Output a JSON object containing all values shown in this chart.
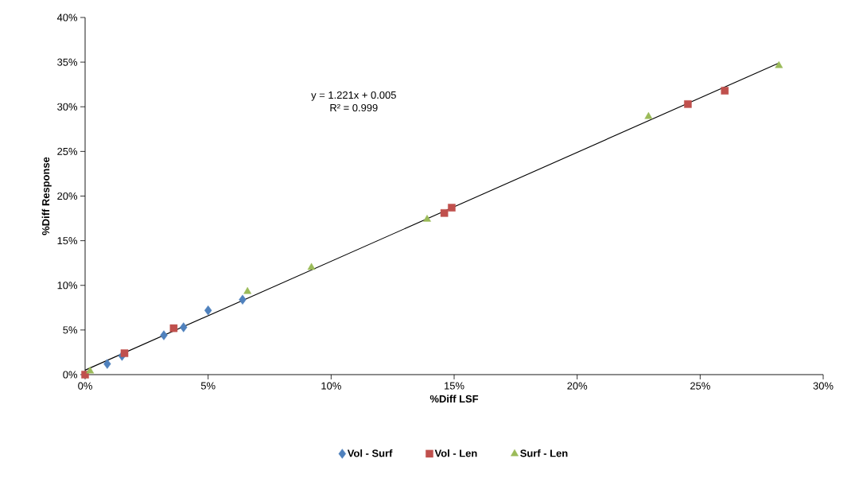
{
  "chart_data": {
    "type": "scatter",
    "xlabel": "%Diff LSF",
    "ylabel": "%Diff Response",
    "xlim": [
      0,
      30
    ],
    "ylim": [
      0,
      40
    ],
    "xticks": [
      {
        "value": 0,
        "label": "0%"
      },
      {
        "value": 5,
        "label": "5%"
      },
      {
        "value": 10,
        "label": "10%"
      },
      {
        "value": 15,
        "label": "15%"
      },
      {
        "value": 20,
        "label": "20%"
      },
      {
        "value": 25,
        "label": "25%"
      },
      {
        "value": 30,
        "label": "30%"
      }
    ],
    "yticks": [
      {
        "value": 0,
        "label": "0%"
      },
      {
        "value": 5,
        "label": "5%"
      },
      {
        "value": 10,
        "label": "10%"
      },
      {
        "value": 15,
        "label": "15%"
      },
      {
        "value": 20,
        "label": "20%"
      },
      {
        "value": 25,
        "label": "25%"
      },
      {
        "value": 30,
        "label": "30%"
      },
      {
        "value": 35,
        "label": "35%"
      },
      {
        "value": 40,
        "label": "40%"
      }
    ],
    "legend": "bottom",
    "annotations": [
      "y = 1.221x + 0.005",
      "R² = 0.999"
    ],
    "series": [
      {
        "name": "Vol - Surf",
        "color": "#4f81bd",
        "marker": "diamond",
        "x": [
          0.9,
          1.5,
          3.2,
          4.0,
          5.0,
          6.4
        ],
        "values": [
          1.2,
          2.1,
          4.4,
          5.3,
          7.2,
          8.4
        ]
      },
      {
        "name": "Vol - Len",
        "color": "#c0504d",
        "marker": "square",
        "x": [
          0,
          1.6,
          3.6,
          14.6,
          14.9,
          24.5,
          26.0
        ],
        "values": [
          0,
          2.4,
          5.2,
          18.1,
          18.7,
          30.3,
          31.8
        ]
      },
      {
        "name": "Surf - Len",
        "color": "#9bbb59",
        "marker": "triangle",
        "x": [
          0.2,
          6.6,
          9.2,
          13.9,
          22.9,
          28.2
        ],
        "values": [
          0.4,
          9.3,
          12.0,
          17.4,
          28.9,
          34.6
        ]
      },
      {
        "type": "line",
        "color": "#000000",
        "marker": "none",
        "x": [
          0,
          28.2
        ],
        "values": [
          0.5,
          34.9
        ]
      }
    ]
  }
}
